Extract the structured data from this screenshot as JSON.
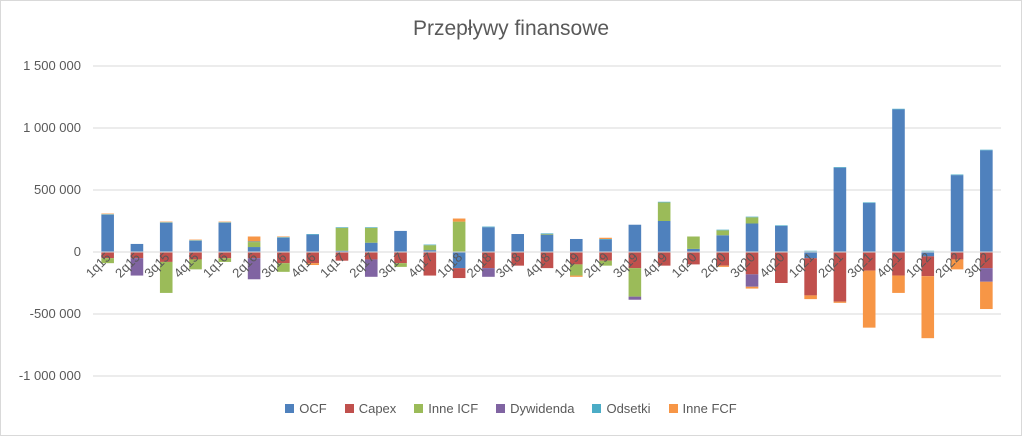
{
  "chart_data": {
    "type": "bar",
    "stacked": true,
    "title": "Przepływy finansowe",
    "xlabel": "",
    "ylabel": "",
    "ylim": [
      -1000000,
      1500000
    ],
    "yticks": [
      -1000000,
      -500000,
      0,
      500000,
      1000000,
      1500000
    ],
    "ytick_labels": [
      "-1 000 000",
      "-500 000",
      "0",
      "500 000",
      "1 000 000",
      "1 500 000"
    ],
    "grid": true,
    "legend_position": "bottom",
    "categories": [
      "1q15",
      "2q15",
      "3q15",
      "4q15",
      "1q16",
      "2q16",
      "3q16",
      "4q16",
      "1q17",
      "2q17",
      "3q17",
      "4q17",
      "1q18",
      "2q18",
      "3q18",
      "4q18",
      "1q19",
      "2q19",
      "3q19",
      "4q19",
      "1q20",
      "2q20",
      "3q20",
      "4q20",
      "1q21",
      "2q21",
      "3q21",
      "4q21",
      "1q22",
      "2q22",
      "3q22"
    ],
    "series": [
      {
        "name": "OCF",
        "color": "#4f81bd",
        "values": [
          300000,
          65000,
          235000,
          90000,
          235000,
          40000,
          115000,
          140000,
          10000,
          75000,
          170000,
          15000,
          -130000,
          200000,
          145000,
          140000,
          105000,
          100000,
          220000,
          250000,
          25000,
          135000,
          230000,
          210000,
          -50000,
          680000,
          395000,
          1150000,
          -35000,
          620000,
          820000
        ]
      },
      {
        "name": "Capex",
        "color": "#c0504d",
        "values": [
          -50000,
          -50000,
          -80000,
          -60000,
          -50000,
          -50000,
          -90000,
          -90000,
          -70000,
          -60000,
          -90000,
          -190000,
          -80000,
          -130000,
          -110000,
          -130000,
          -100000,
          -70000,
          -130000,
          -110000,
          -100000,
          -110000,
          -180000,
          -250000,
          -300000,
          -400000,
          -150000,
          -190000,
          -160000,
          -60000,
          -130000
        ]
      },
      {
        "name": "Inne ICF",
        "color": "#9bbb59",
        "values": [
          -40000,
          0,
          -250000,
          -80000,
          -30000,
          40000,
          -70000,
          0,
          185000,
          120000,
          -30000,
          40000,
          245000,
          0,
          0,
          5000,
          -90000,
          -40000,
          -230000,
          150000,
          100000,
          40000,
          50000,
          0,
          5000,
          0,
          0,
          0,
          5000,
          0,
          0
        ]
      },
      {
        "name": "Dywidenda",
        "color": "#8064a2",
        "values": [
          0,
          -140000,
          0,
          0,
          0,
          -170000,
          0,
          0,
          0,
          -140000,
          0,
          0,
          0,
          -70000,
          0,
          0,
          0,
          0,
          -25000,
          0,
          0,
          0,
          -100000,
          0,
          0,
          0,
          0,
          0,
          0,
          0,
          -110000
        ]
      },
      {
        "name": "Odsetki",
        "color": "#4bacc6",
        "values": [
          5000,
          0,
          5000,
          5000,
          5000,
          5000,
          5000,
          5000,
          5000,
          5000,
          0,
          5000,
          0,
          5000,
          0,
          5000,
          0,
          5000,
          0,
          5000,
          0,
          5000,
          5000,
          5000,
          5000,
          5000,
          5000,
          5000,
          5000,
          5000,
          5000
        ]
      },
      {
        "name": "Inne FCF",
        "color": "#f79646",
        "values": [
          5000,
          0,
          5000,
          5000,
          5000,
          40000,
          5000,
          -15000,
          0,
          0,
          0,
          0,
          25000,
          0,
          0,
          0,
          -10000,
          10000,
          0,
          0,
          0,
          -10000,
          -15000,
          0,
          -30000,
          -10000,
          -460000,
          -140000,
          -500000,
          -80000,
          -220000
        ]
      }
    ]
  }
}
